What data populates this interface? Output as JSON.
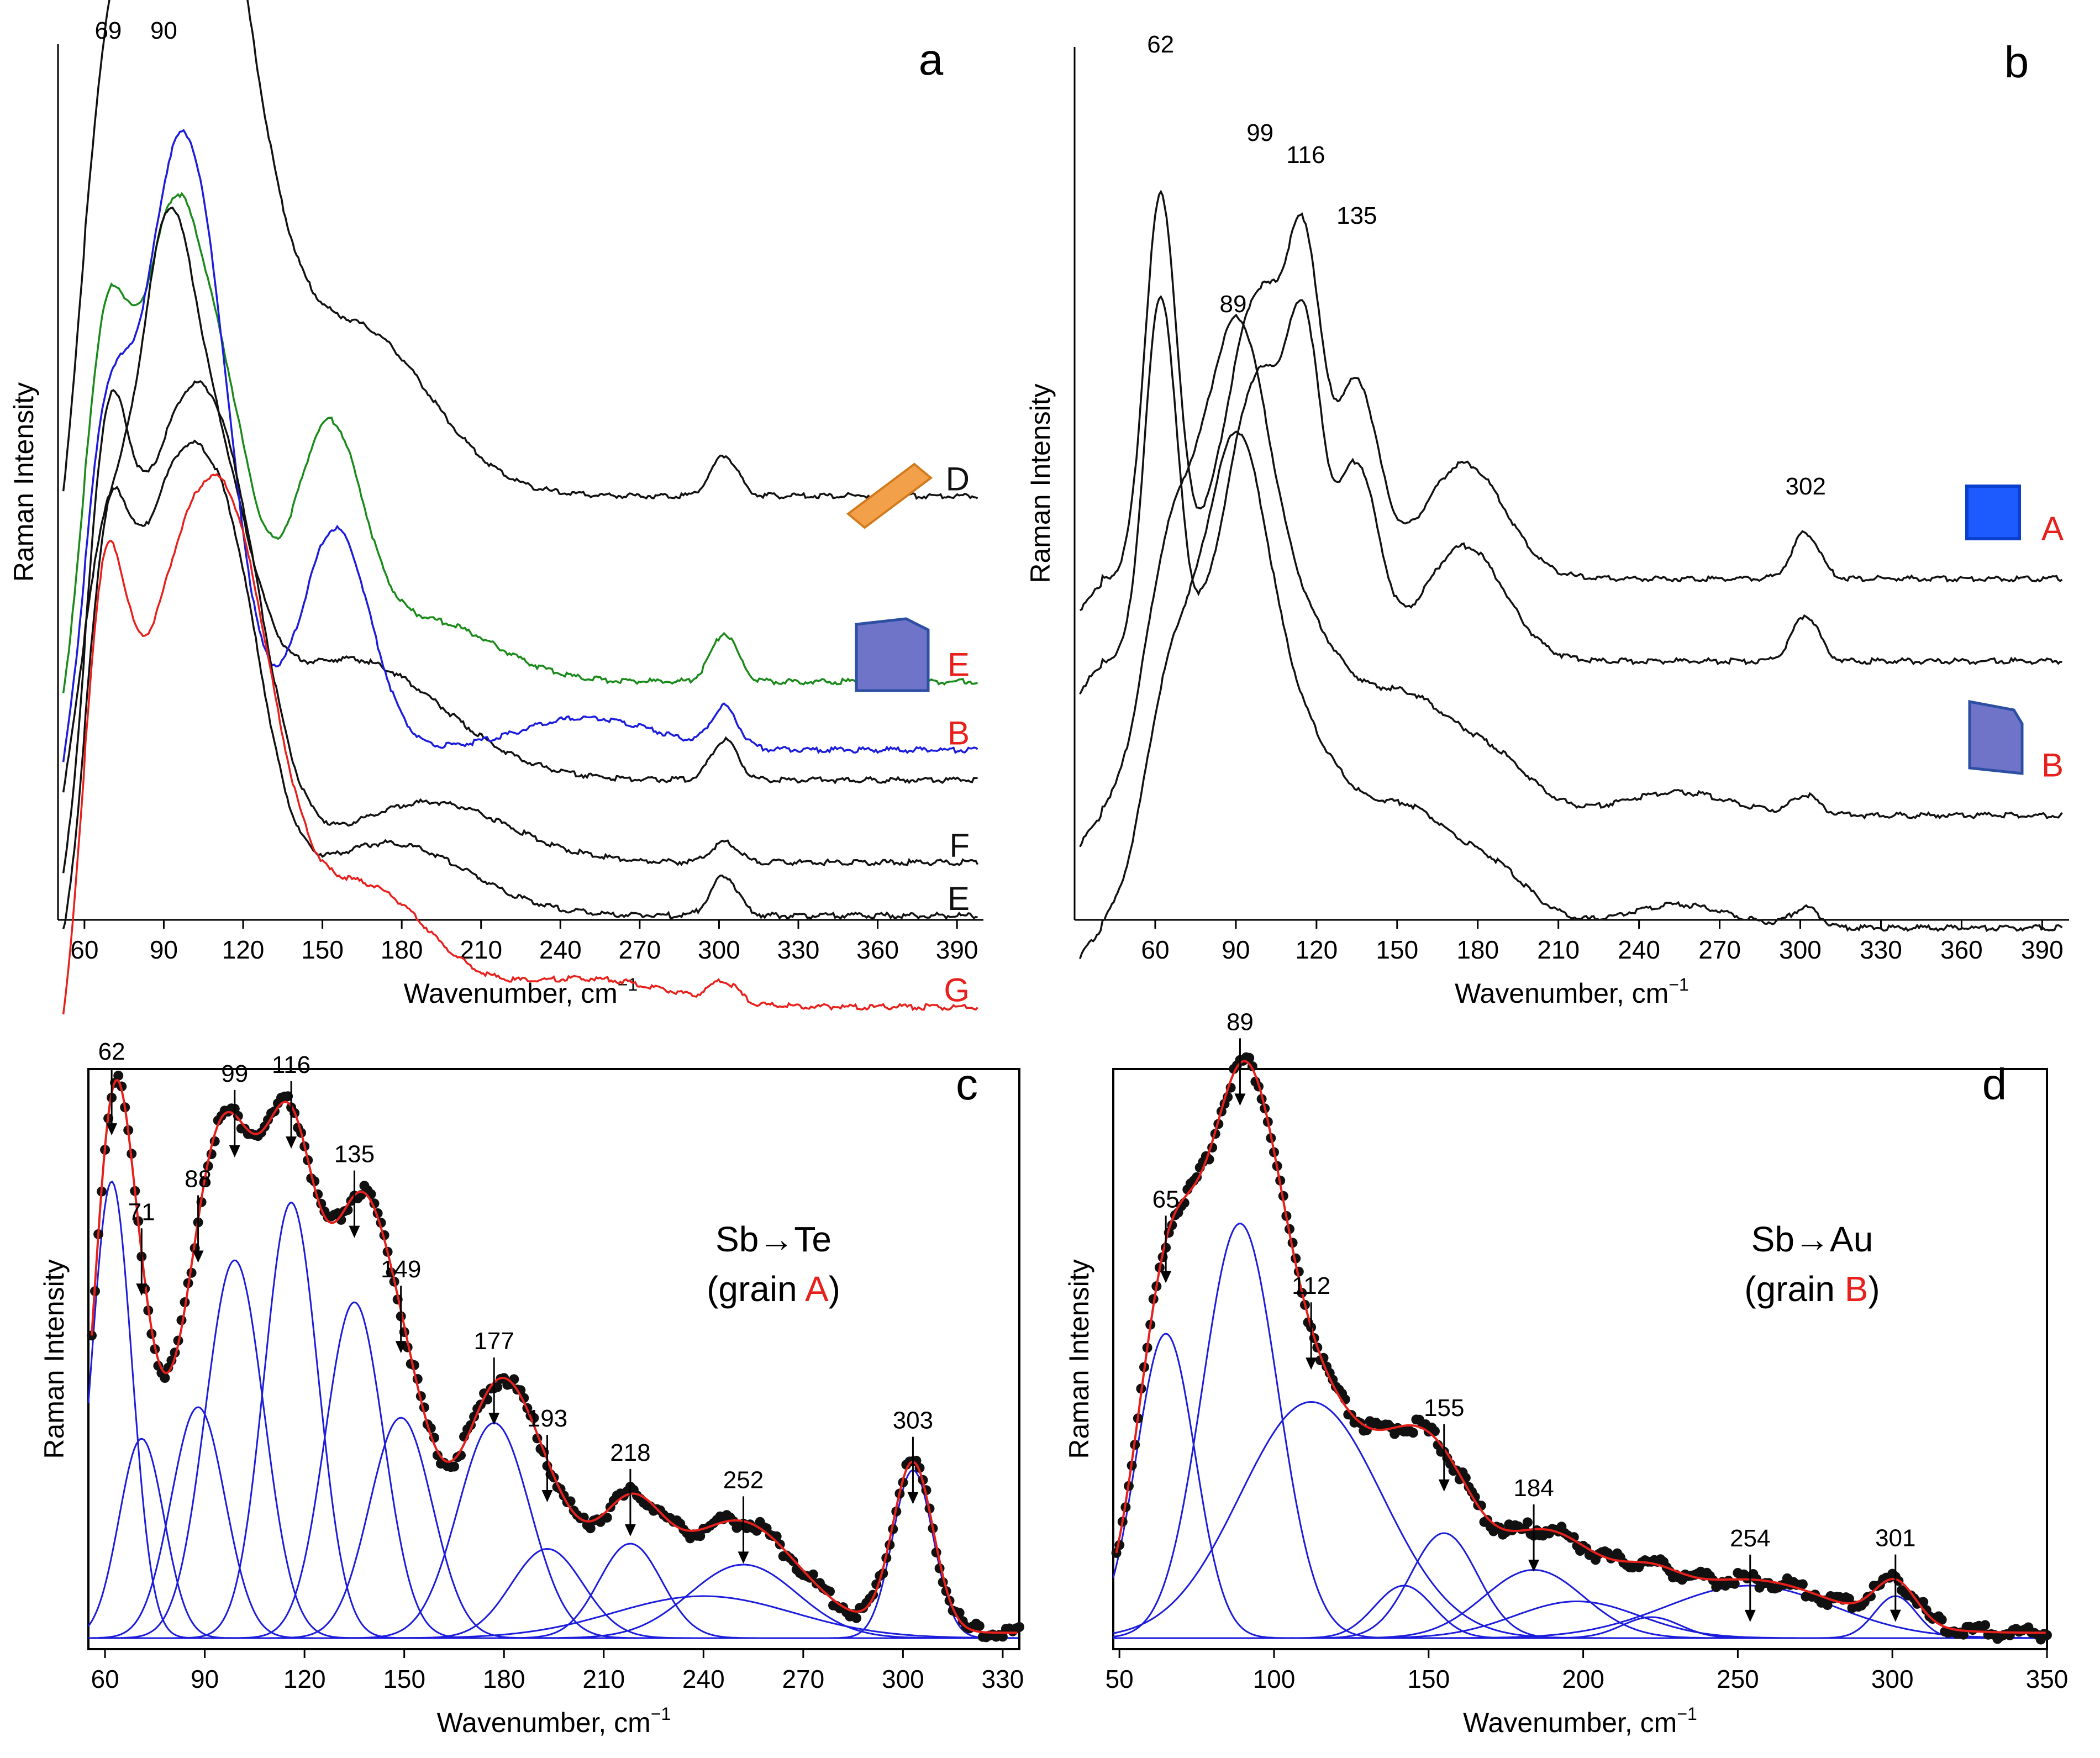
{
  "figure": {
    "panels": [
      {
        "id": "a",
        "letter": "a",
        "type": "line",
        "ylabel": "Raman Intensity",
        "xlabel_main": "Wavenumber, cm",
        "xlabel_sup": "−1",
        "xlim": [
          50,
          400
        ],
        "xticks": [
          60,
          90,
          120,
          150,
          180,
          210,
          240,
          270,
          300,
          330,
          360,
          390
        ],
        "peak_labels": [
          {
            "x": 69,
            "text": "69"
          },
          {
            "x": 90,
            "text": "90"
          }
        ],
        "colors": {
          "black": "#111111",
          "green": "#1a8a1a",
          "blue": "#1c1cdc",
          "red": "#e8201c",
          "label_red": "#e8201c"
        },
        "traces": [
          {
            "name": "D",
            "label_color": "#111111",
            "line_color": "#111111",
            "peaks": [
              {
                "x": 69,
                "h": 0.95,
                "w": 11
              },
              {
                "x": 92,
                "h": 1.0,
                "w": 15
              },
              {
                "x": 110,
                "h": 0.8,
                "w": 12
              },
              {
                "x": 125,
                "h": 0.45,
                "w": 14
              },
              {
                "x": 162,
                "h": 0.42,
                "w": 28
              },
              {
                "x": 302,
                "h": 0.1,
                "w": 5
              }
            ],
            "baseline": 0.15,
            "rel": 0.62
          },
          {
            "name": "E",
            "label_color": "#e8201c",
            "line_color": "#1a8a1a",
            "peaks": [
              {
                "x": 68,
                "h": 0.9,
                "w": 9
              },
              {
                "x": 92,
                "h": 1.0,
                "w": 11
              },
              {
                "x": 112,
                "h": 0.65,
                "w": 12
              },
              {
                "x": 152,
                "h": 0.6,
                "w": 13
              },
              {
                "x": 190,
                "h": 0.15,
                "w": 25
              },
              {
                "x": 302,
                "h": 0.12,
                "w": 5
              }
            ],
            "baseline": 0.1,
            "rel": 0.4
          },
          {
            "name": "",
            "label_color": "#111111",
            "line_color": "#111111",
            "peaks": [
              {
                "x": 68,
                "h": 0.6,
                "w": 10
              },
              {
                "x": 90,
                "h": 1.0,
                "w": 10
              },
              {
                "x": 108,
                "h": 0.7,
                "w": 14
              },
              {
                "x": 160,
                "h": 0.3,
                "w": 35
              },
              {
                "x": 302,
                "h": 0.1,
                "w": 5
              }
            ],
            "baseline": 0.08,
            "rel": 0.28
          },
          {
            "name": "B",
            "label_color": "#e8201c",
            "line_color": "#1c1cdc",
            "peaks": [
              {
                "x": 68,
                "h": 0.8,
                "w": 9
              },
              {
                "x": 90,
                "h": 0.95,
                "w": 11
              },
              {
                "x": 106,
                "h": 1.0,
                "w": 12
              },
              {
                "x": 155,
                "h": 0.55,
                "w": 13
              },
              {
                "x": 250,
                "h": 0.08,
                "w": 25
              },
              {
                "x": 302,
                "h": 0.1,
                "w": 5
              }
            ],
            "baseline": 0.08,
            "rel": 0.32
          },
          {
            "name": "F",
            "label_color": "#111111",
            "line_color": "#111111",
            "peaks": [
              {
                "x": 68,
                "h": 0.85,
                "w": 8
              },
              {
                "x": 95,
                "h": 1.0,
                "w": 18
              },
              {
                "x": 118,
                "h": 0.5,
                "w": 14
              },
              {
                "x": 190,
                "h": 0.15,
                "w": 30
              },
              {
                "x": 302,
                "h": 0.05,
                "w": 5
              }
            ],
            "baseline": 0.1,
            "rel": 0.16
          },
          {
            "name": "E",
            "label_color": "#111111",
            "line_color": "#111111",
            "peaks": [
              {
                "x": 68,
                "h": 0.75,
                "w": 8
              },
              {
                "x": 93,
                "h": 1.0,
                "w": 16
              },
              {
                "x": 117,
                "h": 0.6,
                "w": 13
              },
              {
                "x": 175,
                "h": 0.18,
                "w": 30
              },
              {
                "x": 302,
                "h": 0.1,
                "w": 5
              }
            ],
            "baseline": 0.08,
            "rel": 0.1
          },
          {
            "name": "G",
            "label_color": "#e8201c",
            "line_color": "#e8201c",
            "peaks": [
              {
                "x": 67,
                "h": 0.85,
                "w": 8
              },
              {
                "x": 97,
                "h": 1.0,
                "w": 20
              },
              {
                "x": 120,
                "h": 0.6,
                "w": 15
              },
              {
                "x": 165,
                "h": 0.3,
                "w": 25
              },
              {
                "x": 250,
                "h": 0.07,
                "w": 30
              },
              {
                "x": 302,
                "h": 0.05,
                "w": 5
              }
            ],
            "baseline": 0.04,
            "rel": 0.0
          }
        ]
      },
      {
        "id": "b",
        "letter": "b",
        "type": "line",
        "ylabel": "Raman Intensity",
        "xlabel_main": "Wavenumber, cm",
        "xlabel_sup": "−1",
        "xlim": [
          30,
          400
        ],
        "xticks": [
          60,
          90,
          120,
          150,
          180,
          210,
          240,
          270,
          300,
          330,
          360,
          390
        ],
        "peak_labels": [
          {
            "x": 62,
            "text": "62"
          },
          {
            "x": 99,
            "text": "99"
          },
          {
            "x": 116,
            "text": "116"
          },
          {
            "x": 135,
            "text": "135"
          },
          {
            "x": 89,
            "text": "89"
          },
          {
            "x": 302,
            "text": "302"
          }
        ],
        "traces": [
          {
            "name": "A",
            "label_color": "#e8201c",
            "line_color": "#111111",
            "peaks": [
              {
                "x": 62,
                "h": 1.0,
                "w": 6
              },
              {
                "x": 99,
                "h": 0.75,
                "w": 12
              },
              {
                "x": 116,
                "h": 0.62,
                "w": 6
              },
              {
                "x": 135,
                "h": 0.5,
                "w": 8
              },
              {
                "x": 175,
                "h": 0.3,
                "w": 15
              },
              {
                "x": 302,
                "h": 0.12,
                "w": 5
              }
            ],
            "baseline": 0.05,
            "rel": 0.45
          },
          {
            "name": "",
            "label_color": "#111111",
            "line_color": "#111111",
            "peaks": [
              {
                "x": 62,
                "h": 0.95,
                "w": 6
              },
              {
                "x": 99,
                "h": 0.75,
                "w": 12
              },
              {
                "x": 116,
                "h": 0.62,
                "w": 6
              },
              {
                "x": 135,
                "h": 0.5,
                "w": 8
              },
              {
                "x": 175,
                "h": 0.3,
                "w": 15
              },
              {
                "x": 302,
                "h": 0.12,
                "w": 5
              }
            ],
            "baseline": 0.05,
            "rel": 0.34
          },
          {
            "name": "B",
            "label_color": "#e8201c",
            "line_color": "#111111",
            "peaks": [
              {
                "x": 65,
                "h": 0.6,
                "w": 10
              },
              {
                "x": 89,
                "h": 1.0,
                "w": 12
              },
              {
                "x": 112,
                "h": 0.5,
                "w": 20
              },
              {
                "x": 155,
                "h": 0.25,
                "w": 15
              },
              {
                "x": 185,
                "h": 0.15,
                "w": 15
              },
              {
                "x": 254,
                "h": 0.06,
                "w": 20
              },
              {
                "x": 302,
                "h": 0.05,
                "w": 5
              }
            ],
            "baseline": 0.02,
            "rel": 0.15
          },
          {
            "name": "",
            "label_color": "#111111",
            "line_color": "#111111",
            "peaks": [
              {
                "x": 65,
                "h": 0.55,
                "w": 10
              },
              {
                "x": 89,
                "h": 1.0,
                "w": 12
              },
              {
                "x": 112,
                "h": 0.5,
                "w": 20
              },
              {
                "x": 155,
                "h": 0.25,
                "w": 15
              },
              {
                "x": 185,
                "h": 0.15,
                "w": 15
              },
              {
                "x": 254,
                "h": 0.06,
                "w": 20
              },
              {
                "x": 302,
                "h": 0.05,
                "w": 5
              }
            ],
            "baseline": 0.02,
            "rel": 0.0
          }
        ]
      },
      {
        "id": "c",
        "letter": "c",
        "type": "line",
        "ylabel": "Raman Intensity",
        "xlabel_main": "Wavenumber, cm",
        "xlabel_sup": "−1",
        "xlim": [
          55,
          335
        ],
        "xticks": [
          60,
          90,
          120,
          150,
          180,
          210,
          240,
          270,
          300,
          330
        ],
        "annotation_pre": "Sb→Te",
        "annotation_grain_pre": "(grain ",
        "annotation_grain_letter": "A",
        "annotation_grain_post": ")",
        "components": [
          {
            "center": 62,
            "h": 0.87,
            "w": 4.5,
            "label": "62"
          },
          {
            "center": 71,
            "h": 0.38,
            "w": 5.0,
            "label": "71"
          },
          {
            "center": 88,
            "h": 0.44,
            "w": 6.0,
            "label": "88"
          },
          {
            "center": 99,
            "h": 0.72,
            "w": 6.5,
            "label": "99"
          },
          {
            "center": 116,
            "h": 0.83,
            "w": 6.0,
            "label": "116"
          },
          {
            "center": 135,
            "h": 0.64,
            "w": 6.5,
            "label": "135"
          },
          {
            "center": 149,
            "h": 0.42,
            "w": 7.0,
            "label": "149"
          },
          {
            "center": 177,
            "h": 0.41,
            "w": 8.0,
            "label": "177"
          },
          {
            "center": 193,
            "h": 0.17,
            "w": 8.0,
            "label": "193"
          },
          {
            "center": 218,
            "h": 0.18,
            "w": 7.0,
            "label": "218"
          },
          {
            "center": 240,
            "h": 0.08,
            "w": 20.0,
            "label": ""
          },
          {
            "center": 252,
            "h": 0.14,
            "w": 12.0,
            "label": "252"
          },
          {
            "center": 303,
            "h": 0.32,
            "w": 4.5,
            "label": "303"
          }
        ]
      },
      {
        "id": "d",
        "letter": "d",
        "type": "line",
        "ylabel": "Raman Intensity",
        "xlabel_main": "Wavenumber, cm",
        "xlabel_sup": "−1",
        "xlim": [
          48,
          350
        ],
        "xticks": [
          50,
          100,
          150,
          200,
          250,
          300,
          350
        ],
        "annotation_pre": "Sb→Au",
        "annotation_grain_pre": "(grain ",
        "annotation_grain_letter": "B",
        "annotation_grain_post": ")",
        "components": [
          {
            "center": 65,
            "h": 0.58,
            "w": 7.0,
            "label": "65"
          },
          {
            "center": 89,
            "h": 0.79,
            "w": 9.0,
            "label": "89"
          },
          {
            "center": 112,
            "h": 0.45,
            "w": 17.0,
            "label": "112"
          },
          {
            "center": 142,
            "h": 0.1,
            "w": 7.0,
            "label": ""
          },
          {
            "center": 155,
            "h": 0.2,
            "w": 8.0,
            "label": "155"
          },
          {
            "center": 184,
            "h": 0.13,
            "w": 12.0,
            "label": "184"
          },
          {
            "center": 198,
            "h": 0.07,
            "w": 15.0,
            "label": ""
          },
          {
            "center": 222,
            "h": 0.04,
            "w": 7.0,
            "label": ""
          },
          {
            "center": 254,
            "h": 0.1,
            "w": 20.0,
            "label": "254"
          },
          {
            "center": 301,
            "h": 0.08,
            "w": 5.0,
            "label": "301"
          }
        ]
      }
    ]
  }
}
